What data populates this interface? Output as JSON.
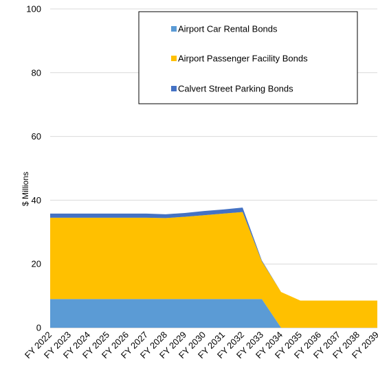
{
  "chart_data": {
    "type": "area",
    "stacked": true,
    "title": "",
    "xlabel": "",
    "ylabel": "$ Millions",
    "ylim": [
      0,
      100
    ],
    "yticks": [
      0,
      20,
      40,
      60,
      80,
      100
    ],
    "grid": true,
    "legend_position": "top-right",
    "categories": [
      "FY 2022",
      "FY 2023",
      "FY 2024",
      "FY 2025",
      "FY 2026",
      "FY 2027",
      "FY 2028",
      "FY 2029",
      "FY 2030",
      "FY 2031",
      "FY 2032",
      "FY 2033",
      "FY 2034",
      "FY 2035",
      "FY 2036",
      "FY 2037",
      "FY 2038",
      "FY 2039"
    ],
    "series": [
      {
        "name": "Airport Car Rental Bonds",
        "color": "#5b9bd5",
        "values": [
          9.0,
          9.0,
          9.0,
          9.0,
          9.0,
          9.0,
          9.0,
          9.0,
          9.0,
          9.0,
          9.0,
          9.0,
          0,
          0,
          0,
          0,
          0,
          0
        ]
      },
      {
        "name": "Airport Passenger Facility Bonds",
        "color": "#ffc000",
        "values": [
          25.5,
          25.5,
          25.5,
          25.5,
          25.5,
          25.5,
          25.4,
          25.8,
          26.3,
          26.8,
          27.3,
          11.8,
          11.2,
          8.5,
          8.5,
          8.5,
          8.5,
          8.5
        ]
      },
      {
        "name": "Calvert Street Parking Bonds",
        "color": "#4472c4",
        "values": [
          1.3,
          1.3,
          1.3,
          1.3,
          1.3,
          1.3,
          1.2,
          1.2,
          1.3,
          1.3,
          1.4,
          0.3,
          0,
          0,
          0,
          0,
          0,
          0
        ]
      }
    ]
  }
}
